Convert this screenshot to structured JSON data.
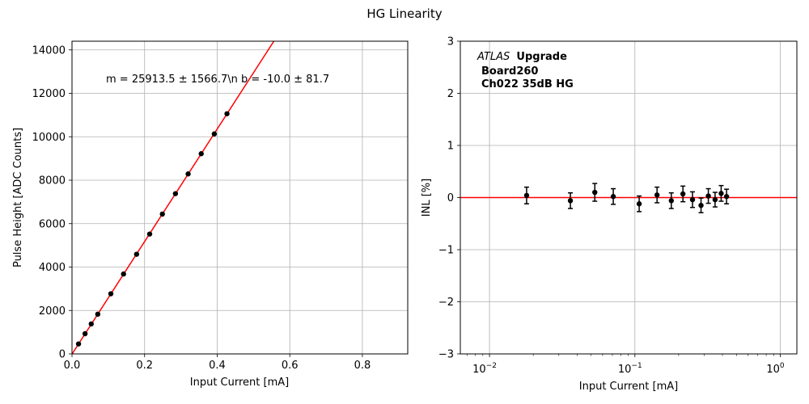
{
  "figure": {
    "title": "HG Linearity"
  },
  "chart_data": [
    {
      "type": "scatter",
      "title": "",
      "xlabel": "Input Current [mA]",
      "ylabel": "Pulse Height [ADC Counts]",
      "xlim": [
        0,
        0.925
      ],
      "ylim": [
        0,
        14400
      ],
      "xticks": [
        0.0,
        0.2,
        0.4,
        0.6,
        0.8
      ],
      "xtick_labels": [
        "0.0",
        "0.2",
        "0.4",
        "0.6",
        "0.8"
      ],
      "yticks": [
        0,
        2000,
        4000,
        6000,
        8000,
        10000,
        12000,
        14000
      ],
      "ytick_labels": [
        "0",
        "2000",
        "4000",
        "6000",
        "8000",
        "10000",
        "12000",
        "14000"
      ],
      "grid": true,
      "annotation": "m = 25913.5 ± 1566.7\\n b = -10.0 ± 81.7",
      "fit": {
        "slope": 25913.5,
        "intercept": -10.0,
        "color": "#ff0000"
      },
      "series": [
        {
          "marker_color": "#000000",
          "x": [
            0.018,
            0.036,
            0.053,
            0.071,
            0.107,
            0.142,
            0.178,
            0.214,
            0.249,
            0.285,
            0.32,
            0.356,
            0.392,
            0.427
          ],
          "y": [
            460,
            930,
            1380,
            1830,
            2770,
            3680,
            4590,
            5520,
            6440,
            7380,
            8290,
            9220,
            10130,
            11060
          ]
        }
      ]
    },
    {
      "type": "scatter",
      "title": "",
      "xlabel": "Input Current [mA]",
      "ylabel": "INL [%]",
      "xscale": "log",
      "xlim": [
        0.0063,
        1.3
      ],
      "ylim": [
        -3,
        3
      ],
      "xticks": [
        0.01,
        0.1,
        1
      ],
      "xtick_labels": [
        "10",
        "10",
        "10"
      ],
      "xtick_exponents": [
        "−2",
        "−1",
        "0"
      ],
      "yticks": [
        -3,
        -2,
        -1,
        0,
        1,
        2,
        3
      ],
      "ytick_labels": [
        "−3",
        "−2",
        "−1",
        "0",
        "1",
        "2",
        "3"
      ],
      "grid": true,
      "reference_line": {
        "y": 0,
        "color": "#ff0000"
      },
      "text": {
        "atlas": "ATLAS",
        "upgrade": "Upgrade",
        "board": "Board260",
        "channel": "Ch022 35dB HG"
      },
      "series": [
        {
          "marker_color": "#000000",
          "x": [
            0.018,
            0.036,
            0.053,
            0.071,
            0.107,
            0.142,
            0.178,
            0.214,
            0.249,
            0.285,
            0.32,
            0.356,
            0.392,
            0.427
          ],
          "y": [
            0.04,
            -0.06,
            0.1,
            0.02,
            -0.12,
            0.05,
            -0.06,
            0.07,
            -0.04,
            -0.15,
            0.03,
            -0.04,
            0.08,
            0.02
          ],
          "yerr": [
            0.16,
            0.15,
            0.17,
            0.15,
            0.15,
            0.15,
            0.15,
            0.15,
            0.15,
            0.14,
            0.14,
            0.14,
            0.15,
            0.14
          ]
        }
      ]
    }
  ]
}
